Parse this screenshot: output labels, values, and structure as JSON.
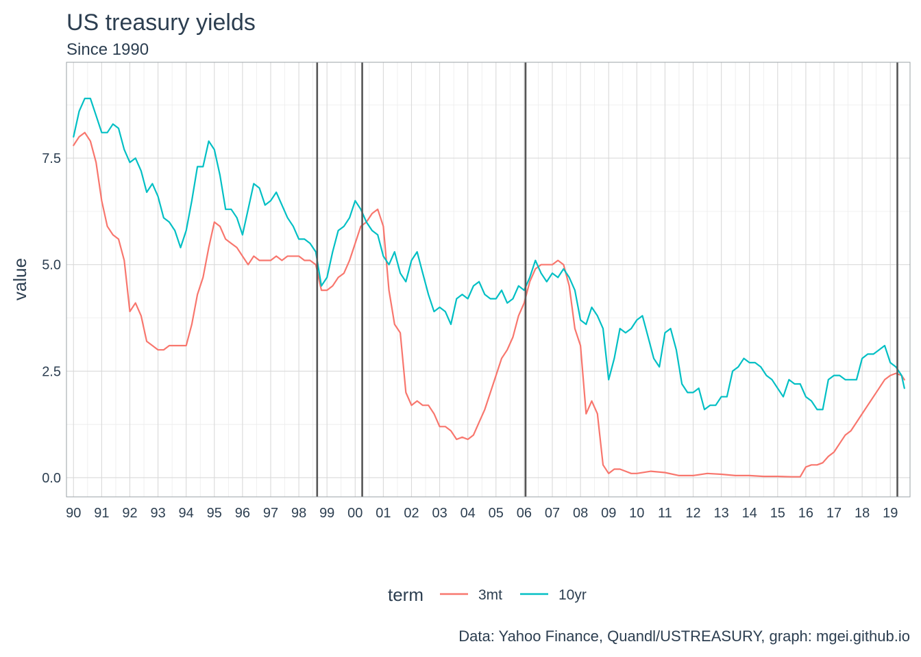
{
  "chart_data": {
    "type": "line",
    "title": "US treasury yields",
    "subtitle": "Since 1990",
    "xlabel": "",
    "ylabel": "value",
    "caption": "Data: Yahoo Finance, Quandl/USTREASURY, graph: mgei.github.io",
    "legend": {
      "title": "term",
      "position": "bottom"
    },
    "grid": true,
    "xlim": [
      1989.75,
      2019.7
    ],
    "ylim": [
      -0.45,
      9.75
    ],
    "y_ticks": [
      0.0,
      2.5,
      5.0,
      7.5
    ],
    "y_tick_labels": [
      "0.0",
      "2.5",
      "5.0",
      "7.5"
    ],
    "x_ticks": [
      1990,
      1991,
      1992,
      1993,
      1994,
      1995,
      1996,
      1997,
      1998,
      1999,
      2000,
      2001,
      2002,
      2003,
      2004,
      2005,
      2006,
      2007,
      2008,
      2009,
      2010,
      2011,
      2012,
      2013,
      2014,
      2015,
      2016,
      2017,
      2018,
      2019
    ],
    "x_tick_labels": [
      "90",
      "91",
      "92",
      "93",
      "94",
      "95",
      "96",
      "97",
      "98",
      "99",
      "00",
      "01",
      "02",
      "03",
      "04",
      "05",
      "06",
      "07",
      "08",
      "09",
      "10",
      "11",
      "12",
      "13",
      "14",
      "15",
      "16",
      "17",
      "18",
      "19"
    ],
    "vlines": [
      1998.65,
      2000.25,
      2006.05,
      2019.25
    ],
    "vline_color": "#555555",
    "series": [
      {
        "name": "3mt",
        "color": "#F8766D",
        "x": [
          1990.0,
          1990.2,
          1990.4,
          1990.6,
          1990.8,
          1991.0,
          1991.2,
          1991.4,
          1991.6,
          1991.8,
          1992.0,
          1992.2,
          1992.4,
          1992.6,
          1992.8,
          1993.0,
          1993.2,
          1993.4,
          1993.6,
          1993.8,
          1994.0,
          1994.2,
          1994.4,
          1994.6,
          1994.8,
          1995.0,
          1995.2,
          1995.4,
          1995.6,
          1995.8,
          1996.0,
          1996.2,
          1996.4,
          1996.6,
          1996.8,
          1997.0,
          1997.2,
          1997.4,
          1997.6,
          1997.8,
          1998.0,
          1998.2,
          1998.4,
          1998.6,
          1998.8,
          1999.0,
          1999.2,
          1999.4,
          1999.6,
          1999.8,
          2000.0,
          2000.2,
          2000.4,
          2000.6,
          2000.8,
          2001.0,
          2001.2,
          2001.4,
          2001.6,
          2001.8,
          2002.0,
          2002.2,
          2002.4,
          2002.6,
          2002.8,
          2003.0,
          2003.2,
          2003.4,
          2003.6,
          2003.8,
          2004.0,
          2004.2,
          2004.4,
          2004.6,
          2004.8,
          2005.0,
          2005.2,
          2005.4,
          2005.6,
          2005.8,
          2006.0,
          2006.2,
          2006.4,
          2006.6,
          2006.8,
          2007.0,
          2007.2,
          2007.4,
          2007.6,
          2007.8,
          2008.0,
          2008.2,
          2008.4,
          2008.6,
          2008.8,
          2009.0,
          2009.2,
          2009.4,
          2009.6,
          2009.8,
          2010.0,
          2010.5,
          2011.0,
          2011.5,
          2012.0,
          2012.5,
          2013.0,
          2013.5,
          2014.0,
          2014.5,
          2015.0,
          2015.5,
          2015.8,
          2016.0,
          2016.2,
          2016.4,
          2016.6,
          2016.8,
          2017.0,
          2017.2,
          2017.4,
          2017.6,
          2017.8,
          2018.0,
          2018.2,
          2018.4,
          2018.6,
          2018.8,
          2019.0,
          2019.2,
          2019.4,
          2019.5
        ],
        "values": [
          7.8,
          8.0,
          8.1,
          7.9,
          7.4,
          6.5,
          5.9,
          5.7,
          5.6,
          5.1,
          3.9,
          4.1,
          3.8,
          3.2,
          3.1,
          3.0,
          3.0,
          3.1,
          3.1,
          3.1,
          3.1,
          3.6,
          4.3,
          4.7,
          5.4,
          6.0,
          5.9,
          5.6,
          5.5,
          5.4,
          5.2,
          5.0,
          5.2,
          5.1,
          5.1,
          5.1,
          5.2,
          5.1,
          5.2,
          5.2,
          5.2,
          5.1,
          5.1,
          5.0,
          4.4,
          4.4,
          4.5,
          4.7,
          4.8,
          5.1,
          5.5,
          5.9,
          6.0,
          6.2,
          6.3,
          5.9,
          4.4,
          3.6,
          3.4,
          2.0,
          1.7,
          1.8,
          1.7,
          1.7,
          1.5,
          1.2,
          1.2,
          1.1,
          0.9,
          0.95,
          0.9,
          1.0,
          1.3,
          1.6,
          2.0,
          2.4,
          2.8,
          3.0,
          3.3,
          3.8,
          4.1,
          4.6,
          4.9,
          5.0,
          5.0,
          5.0,
          5.1,
          5.0,
          4.5,
          3.5,
          3.1,
          1.5,
          1.8,
          1.5,
          0.3,
          0.1,
          0.2,
          0.2,
          0.15,
          0.1,
          0.1,
          0.15,
          0.12,
          0.05,
          0.05,
          0.1,
          0.08,
          0.05,
          0.05,
          0.03,
          0.03,
          0.02,
          0.02,
          0.25,
          0.3,
          0.3,
          0.35,
          0.5,
          0.6,
          0.8,
          1.0,
          1.1,
          1.3,
          1.5,
          1.7,
          1.9,
          2.1,
          2.3,
          2.4,
          2.45,
          2.4,
          2.3
        ]
      },
      {
        "name": "10yr",
        "color": "#00BFC4",
        "x": [
          1990.0,
          1990.2,
          1990.4,
          1990.6,
          1990.8,
          1991.0,
          1991.2,
          1991.4,
          1991.6,
          1991.8,
          1992.0,
          1992.2,
          1992.4,
          1992.6,
          1992.8,
          1993.0,
          1993.2,
          1993.4,
          1993.6,
          1993.8,
          1994.0,
          1994.2,
          1994.4,
          1994.6,
          1994.8,
          1995.0,
          1995.2,
          1995.4,
          1995.6,
          1995.8,
          1996.0,
          1996.2,
          1996.4,
          1996.6,
          1996.8,
          1997.0,
          1997.2,
          1997.4,
          1997.6,
          1997.8,
          1998.0,
          1998.2,
          1998.4,
          1998.6,
          1998.8,
          1999.0,
          1999.2,
          1999.4,
          1999.6,
          1999.8,
          2000.0,
          2000.2,
          2000.4,
          2000.6,
          2000.8,
          2001.0,
          2001.2,
          2001.4,
          2001.6,
          2001.8,
          2002.0,
          2002.2,
          2002.4,
          2002.6,
          2002.8,
          2003.0,
          2003.2,
          2003.4,
          2003.6,
          2003.8,
          2004.0,
          2004.2,
          2004.4,
          2004.6,
          2004.8,
          2005.0,
          2005.2,
          2005.4,
          2005.6,
          2005.8,
          2006.0,
          2006.2,
          2006.4,
          2006.6,
          2006.8,
          2007.0,
          2007.2,
          2007.4,
          2007.6,
          2007.8,
          2008.0,
          2008.2,
          2008.4,
          2008.6,
          2008.8,
          2009.0,
          2009.2,
          2009.4,
          2009.6,
          2009.8,
          2010.0,
          2010.2,
          2010.4,
          2010.6,
          2010.8,
          2011.0,
          2011.2,
          2011.4,
          2011.6,
          2011.8,
          2012.0,
          2012.2,
          2012.4,
          2012.6,
          2012.8,
          2013.0,
          2013.2,
          2013.4,
          2013.6,
          2013.8,
          2014.0,
          2014.2,
          2014.4,
          2014.6,
          2014.8,
          2015.0,
          2015.2,
          2015.4,
          2015.6,
          2015.8,
          2016.0,
          2016.2,
          2016.4,
          2016.6,
          2016.8,
          2017.0,
          2017.2,
          2017.4,
          2017.6,
          2017.8,
          2018.0,
          2018.2,
          2018.4,
          2018.6,
          2018.8,
          2019.0,
          2019.2,
          2019.4,
          2019.5
        ],
        "values": [
          8.0,
          8.6,
          8.9,
          8.9,
          8.5,
          8.1,
          8.1,
          8.3,
          8.2,
          7.7,
          7.4,
          7.5,
          7.2,
          6.7,
          6.9,
          6.6,
          6.1,
          6.0,
          5.8,
          5.4,
          5.8,
          6.5,
          7.3,
          7.3,
          7.9,
          7.7,
          7.1,
          6.3,
          6.3,
          6.1,
          5.7,
          6.3,
          6.9,
          6.8,
          6.4,
          6.5,
          6.7,
          6.4,
          6.1,
          5.9,
          5.6,
          5.6,
          5.5,
          5.3,
          4.5,
          4.7,
          5.3,
          5.8,
          5.9,
          6.1,
          6.5,
          6.3,
          6.0,
          5.8,
          5.7,
          5.2,
          5.0,
          5.3,
          4.8,
          4.6,
          5.1,
          5.3,
          4.8,
          4.3,
          3.9,
          4.0,
          3.9,
          3.6,
          4.2,
          4.3,
          4.2,
          4.5,
          4.6,
          4.3,
          4.2,
          4.2,
          4.4,
          4.1,
          4.2,
          4.5,
          4.4,
          4.7,
          5.1,
          4.8,
          4.6,
          4.8,
          4.7,
          4.9,
          4.7,
          4.4,
          3.7,
          3.6,
          4.0,
          3.8,
          3.5,
          2.3,
          2.8,
          3.5,
          3.4,
          3.5,
          3.7,
          3.8,
          3.3,
          2.8,
          2.6,
          3.4,
          3.5,
          3.0,
          2.2,
          2.0,
          2.0,
          2.1,
          1.6,
          1.7,
          1.7,
          1.9,
          1.9,
          2.5,
          2.6,
          2.8,
          2.7,
          2.7,
          2.6,
          2.4,
          2.3,
          2.1,
          1.9,
          2.3,
          2.2,
          2.2,
          1.9,
          1.8,
          1.6,
          1.6,
          2.3,
          2.4,
          2.4,
          2.3,
          2.3,
          2.3,
          2.8,
          2.9,
          2.9,
          3.0,
          3.1,
          2.7,
          2.6,
          2.4,
          2.1
        ]
      }
    ]
  }
}
